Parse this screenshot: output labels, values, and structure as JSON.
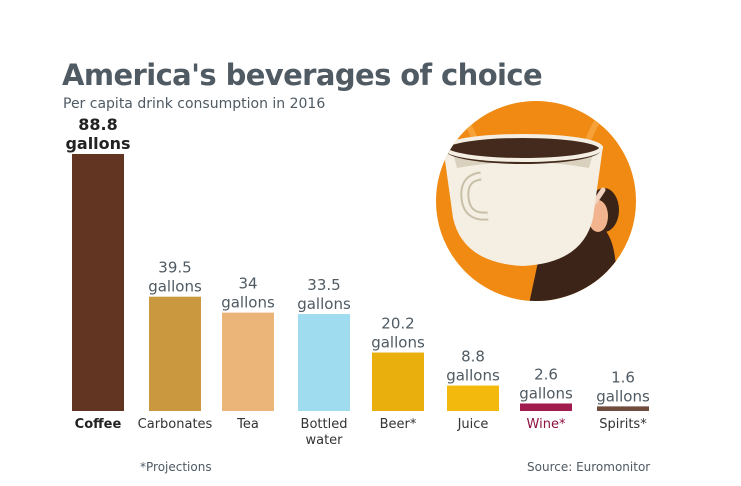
{
  "title": "America's beverages of choice",
  "subtitle": "Per capita drink consumption in 2016",
  "footnote": "*Projections",
  "source": "Source: Euromonitor",
  "chart_data": {
    "type": "bar",
    "title": "America's beverages of choice",
    "subtitle": "Per capita drink consumption in 2016",
    "categories": [
      "Coffee",
      "Carbonates",
      "Tea",
      "Bottled water",
      "Beer*",
      "Juice",
      "Wine*",
      "Spirits*"
    ],
    "category_lines": [
      [
        "Coffee"
      ],
      [
        "Carbonates"
      ],
      [
        "Tea"
      ],
      [
        "Bottled",
        "water"
      ],
      [
        "Beer*"
      ],
      [
        "Juice"
      ],
      [
        "Wine*"
      ],
      [
        "Spirits*"
      ]
    ],
    "values": [
      88.8,
      39.5,
      34,
      33.5,
      20.2,
      8.8,
      2.6,
      1.6
    ],
    "value_labels": [
      "88.8",
      "39.5",
      "34",
      "33.5",
      "20.2",
      "8.8",
      "2.6",
      "1.6"
    ],
    "unit_label": "gallons",
    "colors": [
      "#623522",
      "#c9983f",
      "#ebb57a",
      "#9fdcf0",
      "#e8af0d",
      "#f3b90c",
      "#a11b4f",
      "#6e4c3e"
    ],
    "category_label_colors": [
      "#222222",
      "#333333",
      "#333333",
      "#333333",
      "#333333",
      "#333333",
      "#8d1140",
      "#333333"
    ],
    "value_label_color": "#4f5a63",
    "coffee_label_color": "#222222",
    "ylim": [
      0,
      88.8
    ],
    "grid": false,
    "legend": "none"
  }
}
